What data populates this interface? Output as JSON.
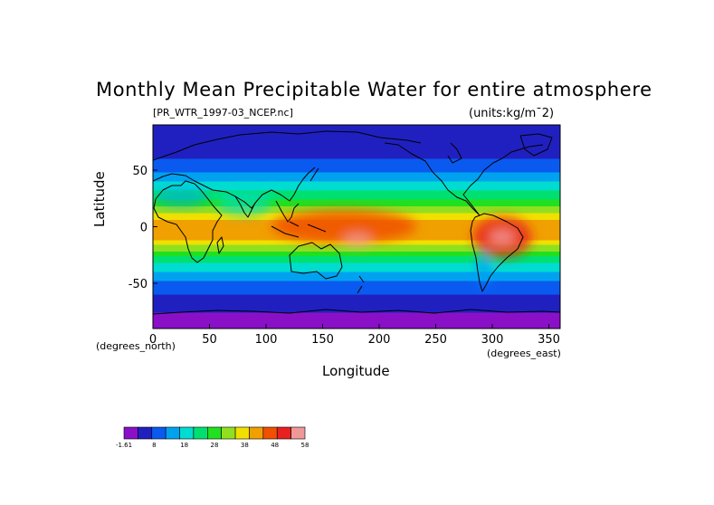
{
  "title": "Monthly Mean Precipitable Water for entire atmosphere",
  "file_label": "[PR_WTR_1997-03_NCEP.nc]",
  "units_label": "(units:kg/m¯2)",
  "colors": {
    "bands": [
      "#8a10c8",
      "#2020c0",
      "#0a5af0",
      "#00a2f0",
      "#00dcd0",
      "#00e070",
      "#20e020",
      "#90e020",
      "#f0e000",
      "#f0a000",
      "#f05000",
      "#e82020",
      "#f09898"
    ]
  },
  "chart_data": {
    "type": "heatmap",
    "title": "Monthly Mean Precipitable Water for entire atmosphere",
    "xlabel": "Longitude",
    "ylabel": "Latitude",
    "x_units": "(degrees_east)",
    "y_units": "(degrees_north)",
    "xlim": [
      0,
      360
    ],
    "ylim": [
      -90,
      90
    ],
    "xticks": [
      0,
      50,
      100,
      150,
      200,
      250,
      300,
      350
    ],
    "yticks": [
      50,
      0,
      -50
    ],
    "colorbar": {
      "labels": [
        "-1.61",
        "8",
        "18",
        "28",
        "38",
        "48",
        "58"
      ],
      "levels": [
        -1.61,
        3,
        8,
        13,
        18,
        23,
        28,
        33,
        38,
        43,
        48,
        53,
        58
      ]
    },
    "zonal_profile": [
      {
        "lat": 90,
        "value": 4
      },
      {
        "lat": 75,
        "value": 5
      },
      {
        "lat": 60,
        "value": 8
      },
      {
        "lat": 45,
        "value": 14
      },
      {
        "lat": 30,
        "value": 24
      },
      {
        "lat": 20,
        "value": 31
      },
      {
        "lat": 10,
        "value": 40
      },
      {
        "lat": 0,
        "value": 47
      },
      {
        "lat": -10,
        "value": 44
      },
      {
        "lat": -20,
        "value": 34
      },
      {
        "lat": -30,
        "value": 24
      },
      {
        "lat": -45,
        "value": 14
      },
      {
        "lat": -60,
        "value": 8
      },
      {
        "lat": -72,
        "value": 4
      },
      {
        "lat": -90,
        "value": 0
      }
    ]
  }
}
